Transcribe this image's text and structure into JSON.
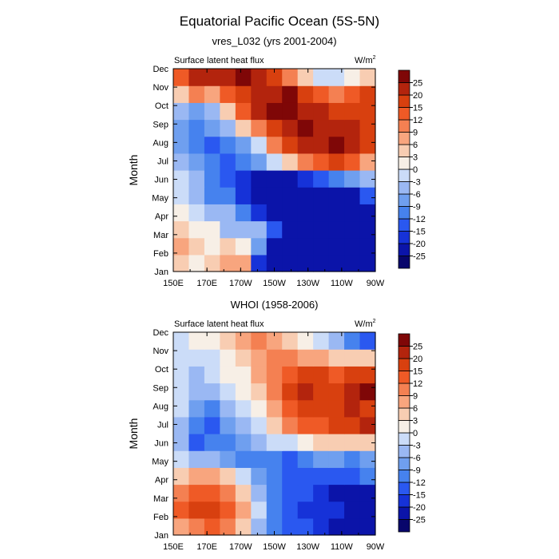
{
  "figure": {
    "title": "Equatorial Pacific Ocean (5S-5N)"
  },
  "chart_data": [
    {
      "type": "heatmap",
      "title": "vres_L032 (yrs 2001-2004)",
      "left_label": "Surface latent heat flux",
      "units_base": "W/m",
      "units_exp": "2",
      "ylabel": "Month",
      "xlabel": "",
      "x_ticks": [
        "150E",
        "170E",
        "170W",
        "150W",
        "130W",
        "110W",
        "90W"
      ],
      "y_ticks": [
        "Jan",
        "Feb",
        "Mar",
        "Apr",
        "May",
        "Jun",
        "Jul",
        "Aug",
        "Sep",
        "Oct",
        "Nov",
        "Dec"
      ],
      "grid": [
        [
          4,
          2,
          4,
          7,
          6,
          -20,
          -22,
          -25,
          -25,
          -25,
          -25,
          -25,
          -25
        ],
        [
          6,
          4,
          2,
          5,
          1,
          -9,
          -22,
          -25,
          -25,
          -25,
          -25,
          -25,
          -25
        ],
        [
          3,
          1,
          0,
          -4,
          -6,
          -6,
          -15,
          -25,
          -25,
          -25,
          -25,
          -25,
          -25
        ],
        [
          0,
          -3,
          -6,
          -6,
          -12,
          -20,
          -25,
          -25,
          -25,
          -25,
          -25,
          -25,
          -22
        ],
        [
          -1,
          -5,
          -10,
          -12,
          -20,
          -25,
          -25,
          -25,
          -25,
          -25,
          -25,
          -22,
          -15
        ],
        [
          -3,
          -6,
          -10,
          -15,
          -20,
          -22,
          -25,
          -25,
          -20,
          -15,
          -12,
          -9,
          -6
        ],
        [
          -4,
          -9,
          -12,
          -15,
          -12,
          -9,
          -3,
          5,
          10,
          12,
          15,
          12,
          8
        ],
        [
          -7,
          -12,
          -15,
          -12,
          -9,
          -3,
          10,
          15,
          20,
          22,
          25,
          22,
          15
        ],
        [
          -9,
          -12,
          -9,
          -6,
          5,
          10,
          15,
          20,
          25,
          22,
          20,
          20,
          15
        ],
        [
          -6,
          -9,
          -6,
          3,
          12,
          20,
          25,
          25,
          22,
          20,
          18,
          15,
          18
        ],
        [
          3,
          9,
          6,
          12,
          15,
          20,
          22,
          25,
          18,
          12,
          9,
          12,
          15
        ],
        [
          12,
          20,
          20,
          22,
          25,
          20,
          15,
          9,
          3,
          -3,
          -3,
          0,
          3
        ]
      ],
      "colorbar": {
        "labels": [
          "-25",
          "-20",
          "-15",
          "-12",
          "-9",
          "-6",
          "-3",
          "0",
          "3",
          "6",
          "9",
          "12",
          "15",
          "20",
          "25"
        ],
        "colors": [
          "#08066b",
          "#0b14a9",
          "#1632d8",
          "#2a58f0",
          "#4682ee",
          "#6f9fef",
          "#9ab8f3",
          "#cbdcf8",
          "#f7efe6",
          "#f8cdb2",
          "#f8a57e",
          "#f48052",
          "#ef5a26",
          "#d8400f",
          "#b3240d",
          "#7f0707"
        ]
      }
    },
    {
      "type": "heatmap",
      "title": "WHOI (1958-2006)",
      "left_label": "Surface latent heat flux",
      "units_base": "W/m",
      "units_exp": "2",
      "ylabel": "Month",
      "xlabel": "",
      "x_ticks": [
        "150E",
        "170E",
        "170W",
        "150W",
        "130W",
        "110W",
        "90W"
      ],
      "y_ticks": [
        "Jan",
        "Feb",
        "Mar",
        "Apr",
        "May",
        "Jun",
        "Jul",
        "Aug",
        "Sep",
        "Oct",
        "Nov",
        "Dec"
      ],
      "grid": [
        [
          6,
          9,
          12,
          9,
          3,
          -6,
          -12,
          -15,
          -15,
          -18,
          -22,
          -25,
          -25
        ],
        [
          12,
          15,
          15,
          12,
          6,
          -3,
          -12,
          -15,
          -18,
          -20,
          -20,
          -22,
          -25
        ],
        [
          9,
          12,
          12,
          9,
          3,
          -6,
          -12,
          -15,
          -15,
          -20,
          -22,
          -22,
          -22
        ],
        [
          3,
          6,
          6,
          3,
          -3,
          -9,
          -12,
          -15,
          -15,
          -15,
          -15,
          -15,
          -12
        ],
        [
          -3,
          -6,
          -6,
          -9,
          -12,
          -12,
          -12,
          -15,
          -12,
          -9,
          -9,
          -12,
          -9
        ],
        [
          -6,
          -15,
          -12,
          -12,
          -9,
          -6,
          -3,
          -3,
          0,
          3,
          3,
          3,
          3
        ],
        [
          -6,
          -12,
          -15,
          -9,
          -6,
          -3,
          3,
          9,
          12,
          12,
          15,
          18,
          20
        ],
        [
          -3,
          -9,
          -12,
          -6,
          -3,
          0,
          6,
          12,
          18,
          15,
          18,
          20,
          18
        ],
        [
          -3,
          -6,
          -6,
          -3,
          0,
          3,
          9,
          15,
          20,
          15,
          18,
          20,
          25
        ],
        [
          -3,
          -6,
          -3,
          0,
          0,
          6,
          9,
          12,
          15,
          15,
          12,
          15,
          15
        ],
        [
          -3,
          -3,
          -3,
          0,
          3,
          6,
          9,
          9,
          6,
          6,
          3,
          3,
          3
        ],
        [
          -3,
          0,
          0,
          3,
          6,
          9,
          6,
          3,
          0,
          -3,
          -6,
          -12,
          -15
        ]
      ],
      "colorbar": {
        "labels": [
          "-25",
          "-20",
          "-15",
          "-12",
          "-9",
          "-6",
          "-3",
          "0",
          "3",
          "6",
          "9",
          "12",
          "15",
          "20",
          "25"
        ],
        "colors": [
          "#08066b",
          "#0b14a9",
          "#1632d8",
          "#2a58f0",
          "#4682ee",
          "#6f9fef",
          "#9ab8f3",
          "#cbdcf8",
          "#f7efe6",
          "#f8cdb2",
          "#f8a57e",
          "#f48052",
          "#ef5a26",
          "#d8400f",
          "#b3240d",
          "#7f0707"
        ]
      }
    }
  ]
}
